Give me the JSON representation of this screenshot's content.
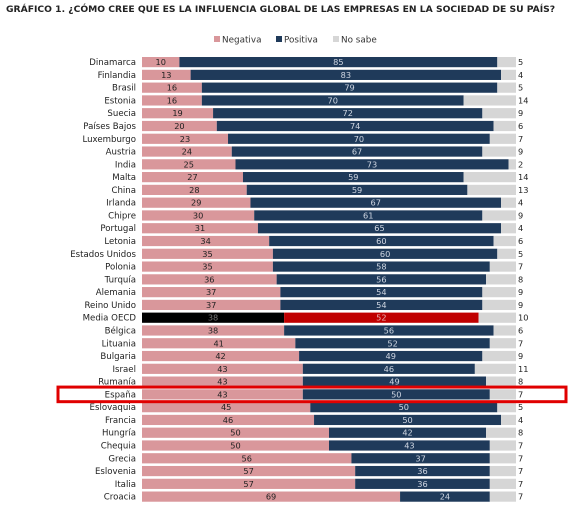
{
  "title": "GRÁFICO 1. ¿CÓMO CREE QUE ES LA INFLUENCIA GLOBAL DE LAS EMPRESAS EN LA SOCIEDAD DE SU PAÍS?",
  "colors": {
    "negativa": "#d9979b",
    "positiva": "#1f3a5a",
    "nosabe": "#d6d6d6",
    "oecd_negativa": "#000000",
    "oecd_positiva": "#c00000",
    "highlight": "#e00000"
  },
  "chart_data": {
    "type": "bar",
    "orientation": "horizontal",
    "stacked": true,
    "title": "GRÁFICO 1. ¿CÓMO CREE QUE ES LA INFLUENCIA GLOBAL DE LAS EMPRESAS EN LA SOCIEDAD DE SU PAÍS?",
    "legend_position": "top",
    "xlim": [
      0,
      100
    ],
    "highlighted_category": "España",
    "average_category": "Media OECD",
    "categories": [
      "Dinamarca",
      "Finlandia",
      "Brasil",
      "Estonia",
      "Suecia",
      "Países Bajos",
      "Luxemburgo",
      "Austria",
      "India",
      "Malta",
      "China",
      "Irlanda",
      "Chipre",
      "Portugal",
      "Letonia",
      "Estados Unidos",
      "Polonia",
      "Turquía",
      "Alemania",
      "Reino Unido",
      "Media OECD",
      "Bélgica",
      "Lituania",
      "Bulgaria",
      "Israel",
      "Rumanía",
      "España",
      "Eslovaquia",
      "Francia",
      "Hungría",
      "Chequia",
      "Grecia",
      "Eslovenia",
      "Italia",
      "Croacia"
    ],
    "series": [
      {
        "name": "Negativa",
        "values": [
          10,
          13,
          16,
          16,
          19,
          20,
          23,
          24,
          25,
          27,
          28,
          29,
          30,
          31,
          34,
          35,
          35,
          36,
          37,
          37,
          38,
          38,
          41,
          42,
          43,
          43,
          43,
          45,
          46,
          50,
          50,
          56,
          57,
          57,
          69
        ]
      },
      {
        "name": "Positiva",
        "values": [
          85,
          83,
          79,
          70,
          72,
          74,
          70,
          67,
          73,
          59,
          59,
          67,
          61,
          65,
          60,
          60,
          58,
          56,
          54,
          54,
          52,
          56,
          52,
          49,
          46,
          49,
          50,
          50,
          50,
          42,
          43,
          37,
          36,
          36,
          24
        ]
      },
      {
        "name": "No sabe",
        "values": [
          5,
          4,
          5,
          14,
          9,
          6,
          7,
          9,
          2,
          14,
          13,
          4,
          9,
          4,
          6,
          5,
          7,
          8,
          9,
          9,
          10,
          6,
          7,
          9,
          11,
          8,
          7,
          5,
          4,
          8,
          7,
          7,
          7,
          7,
          7
        ]
      }
    ]
  }
}
